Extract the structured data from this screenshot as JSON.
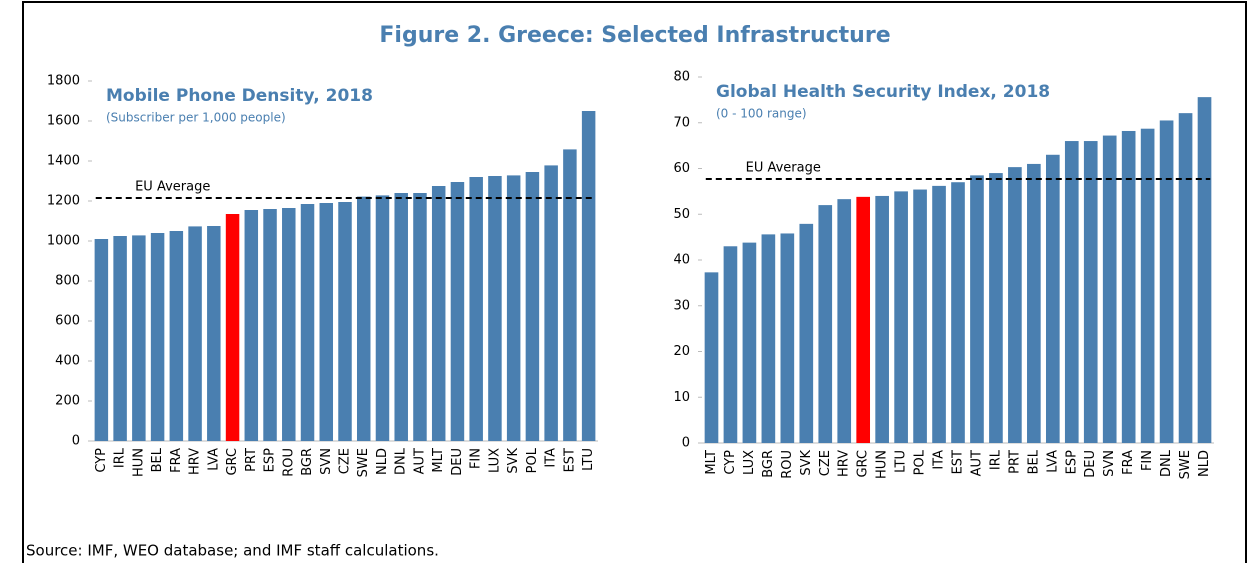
{
  "title": "Figure 2. Greece: Selected Infrastructure",
  "source": "Source: IMF, WEO database; and IMF staff calculations.",
  "chart_data": [
    {
      "type": "bar",
      "title": "Mobile Phone Density, 2018",
      "subtitle": "(Subscriber per 1,000 people)",
      "categories": [
        "CYP",
        "IRL",
        "HUN",
        "BEL",
        "FRA",
        "HRV",
        "LVA",
        "GRC",
        "PRT",
        "ESP",
        "ROU",
        "BGR",
        "SVN",
        "CZE",
        "SWE",
        "NLD",
        "DNL",
        "AUT",
        "MLT",
        "DEU",
        "FIN",
        "LUX",
        "SVK",
        "POL",
        "ITA",
        "EST",
        "LTU"
      ],
      "values": [
        1010,
        1025,
        1028,
        1040,
        1050,
        1073,
        1075,
        1135,
        1155,
        1160,
        1165,
        1185,
        1190,
        1195,
        1222,
        1228,
        1240,
        1240,
        1275,
        1295,
        1320,
        1325,
        1328,
        1345,
        1378,
        1458,
        1650
      ],
      "color": "#4a7fb0",
      "highlight": {
        "category": "GRC",
        "color": "#ff0000"
      },
      "reference_line": {
        "label": "EU Average",
        "value": 1215
      },
      "ylim": [
        0,
        1800
      ],
      "yticks": [
        {
          "value": 0,
          "label": "0"
        },
        200,
        400,
        600,
        800,
        1000,
        1200,
        1400,
        1600,
        1800
      ],
      "grid": false
    },
    {
      "type": "bar",
      "title": "Global Health Security Index, 2018",
      "subtitle": "(0 - 100 range)",
      "categories": [
        "MLT",
        "CYP",
        "LUX",
        "BGR",
        "ROU",
        "SVK",
        "CZE",
        "HRV",
        "GRC",
        "HUN",
        "LTU",
        "POL",
        "ITA",
        "EST",
        "AUT",
        "IRL",
        "PRT",
        "BEL",
        "LVA",
        "ESP",
        "DEU",
        "SVN",
        "FRA",
        "FIN",
        "DNL",
        "SWE",
        "NLD"
      ],
      "values": [
        37.3,
        43,
        43.8,
        45.6,
        45.8,
        47.9,
        52,
        53.3,
        53.8,
        54,
        55,
        55.4,
        56.2,
        57,
        58.5,
        59,
        60.3,
        61,
        63,
        66,
        66,
        67.2,
        68.2,
        68.7,
        70.5,
        72.1,
        75.6
      ],
      "color": "#4a7fb0",
      "highlight": {
        "category": "GRC",
        "color": "#ff0000"
      },
      "reference_line": {
        "label": "EU Average",
        "value": 57.7
      },
      "ylim": [
        0,
        80
      ],
      "yticks": [
        0,
        10,
        20,
        30,
        40,
        50,
        60,
        70,
        80
      ],
      "grid": false
    }
  ]
}
